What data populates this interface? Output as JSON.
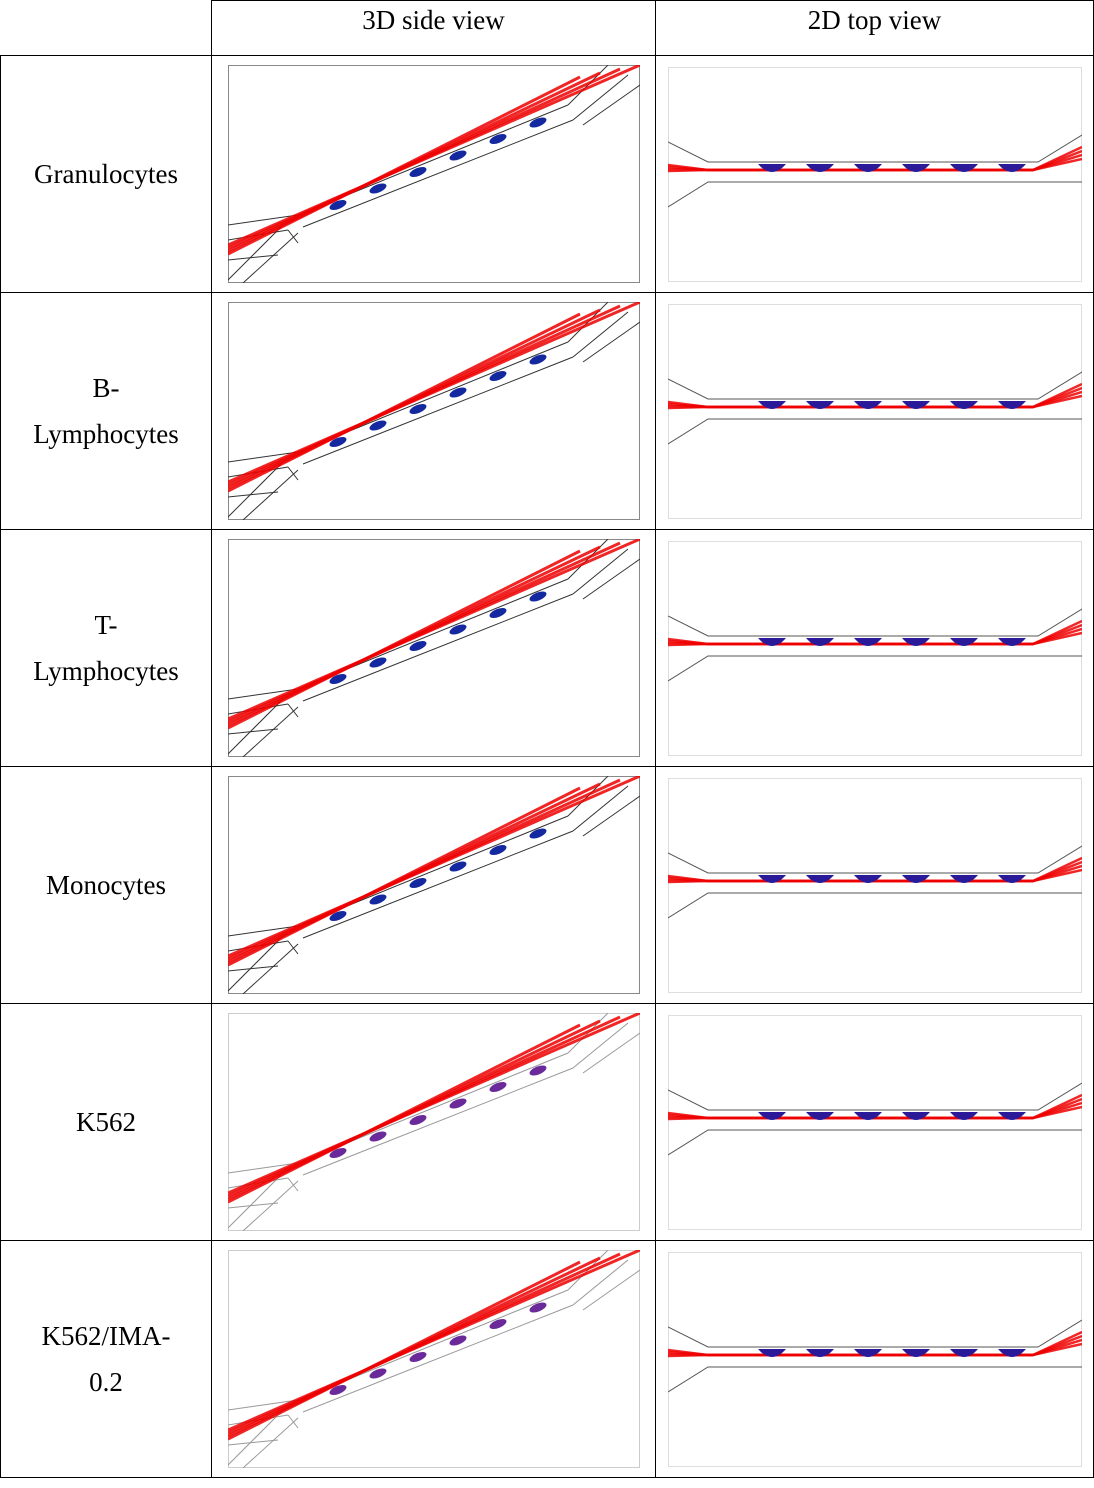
{
  "table": {
    "columns": [
      "3D side view",
      "2D top view"
    ],
    "rows": [
      {
        "label_lines": [
          "Granulocytes"
        ]
      },
      {
        "label_lines": [
          "B-",
          "Lymphocytes"
        ]
      },
      {
        "label_lines": [
          "T-",
          "Lymphocytes"
        ]
      },
      {
        "label_lines": [
          "Monocytes"
        ]
      },
      {
        "label_lines": [
          "K562"
        ]
      },
      {
        "label_lines": [
          "K562/IMA-",
          "0.2"
        ]
      }
    ]
  }
}
